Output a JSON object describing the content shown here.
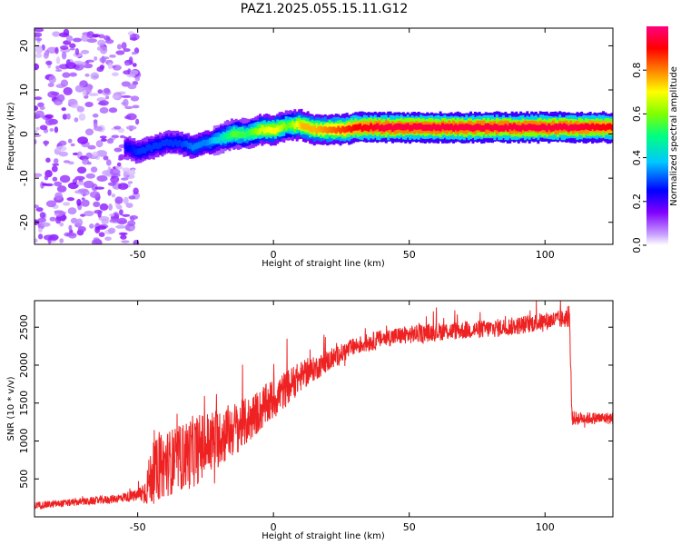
{
  "title": "PAZ1.2025.055.15.11.G12",
  "chart_data": [
    {
      "type": "heatmap",
      "xlabel": "Height of straight line (km)",
      "ylabel": "Frequency (Hz)",
      "xlim": [
        -88,
        125
      ],
      "ylim": [
        -25,
        24
      ],
      "x_ticks": [
        -50,
        0,
        50,
        100
      ],
      "y_ticks": [
        -20,
        -10,
        0,
        10,
        20
      ],
      "colorbar": {
        "label": "Normalized spectral amplitude",
        "range": [
          0,
          1
        ],
        "ticks": [
          "0.0",
          "0.2",
          "0.4",
          "0.6",
          "0.8"
        ],
        "colors": [
          "#ffffff",
          "#c8a0ff",
          "#8000ff",
          "#0000ff",
          "#00c8ff",
          "#00ff80",
          "#80ff00",
          "#ffff00",
          "#ff8000",
          "#ff0000",
          "#ff0080"
        ]
      },
      "ridge": {
        "x": [
          -55,
          -50,
          -45,
          -40,
          -35,
          -30,
          -25,
          -20,
          -15,
          -10,
          -5,
          0,
          5,
          10,
          15,
          20,
          25,
          30,
          40,
          50,
          60,
          70,
          80,
          90,
          100,
          110,
          125
        ],
        "y": [
          -3,
          -4,
          -3,
          -2,
          -2,
          -3,
          -2,
          -1,
          0,
          0,
          1,
          1,
          2,
          2,
          1,
          1,
          1,
          1.5,
          1.5,
          1.5,
          1.5,
          1.5,
          1.5,
          1.5,
          1.5,
          1.5,
          1.5
        ],
        "peak_amplitude": [
          0.25,
          0.3,
          0.3,
          0.3,
          0.3,
          0.35,
          0.35,
          0.45,
          0.6,
          0.55,
          0.7,
          0.75,
          0.6,
          0.8,
          0.8,
          0.85,
          0.9,
          0.95,
          1.0,
          1.0,
          1.0,
          1.0,
          1.0,
          1.0,
          1.0,
          1.0,
          0.95
        ]
      },
      "noise_region_x": [
        -88,
        -50
      ]
    },
    {
      "type": "line",
      "xlabel": "Height of straight line (km)",
      "ylabel": "SNR (10 * v/v)",
      "xlim": [
        -88,
        125
      ],
      "ylim": [
        0,
        2850
      ],
      "x_ticks": [
        -50,
        0,
        50,
        100
      ],
      "y_ticks": [
        500,
        1000,
        1500,
        2000,
        2500
      ],
      "color": "#ee2222",
      "series": [
        {
          "x": [
            -88,
            -80,
            -70,
            -60,
            -55,
            -50,
            -47,
            -45,
            -40,
            -35,
            -30,
            -25,
            -20,
            -15,
            -10,
            -5,
            0,
            5,
            10,
            15,
            20,
            25,
            30,
            35,
            40,
            45,
            50,
            55,
            60,
            65,
            70,
            75,
            80,
            85,
            90,
            95,
            100,
            105,
            109,
            110,
            115,
            120,
            125
          ],
          "values": [
            150,
            170,
            200,
            230,
            260,
            280,
            350,
            550,
            700,
            760,
            850,
            950,
            1050,
            1150,
            1250,
            1400,
            1550,
            1700,
            1850,
            1950,
            2050,
            2150,
            2250,
            2300,
            2350,
            2380,
            2400,
            2420,
            2440,
            2450,
            2460,
            2470,
            2480,
            2500,
            2520,
            2550,
            2580,
            2600,
            2620,
            1300,
            1300,
            1300,
            1300
          ],
          "noise": [
            60,
            60,
            60,
            70,
            80,
            100,
            250,
            500,
            550,
            550,
            600,
            550,
            500,
            450,
            400,
            350,
            350,
            300,
            250,
            200,
            180,
            160,
            150,
            150,
            150,
            150,
            150,
            150,
            150,
            150,
            150,
            150,
            150,
            150,
            150,
            150,
            150,
            150,
            150,
            120,
            100,
            100,
            100
          ]
        }
      ]
    }
  ]
}
